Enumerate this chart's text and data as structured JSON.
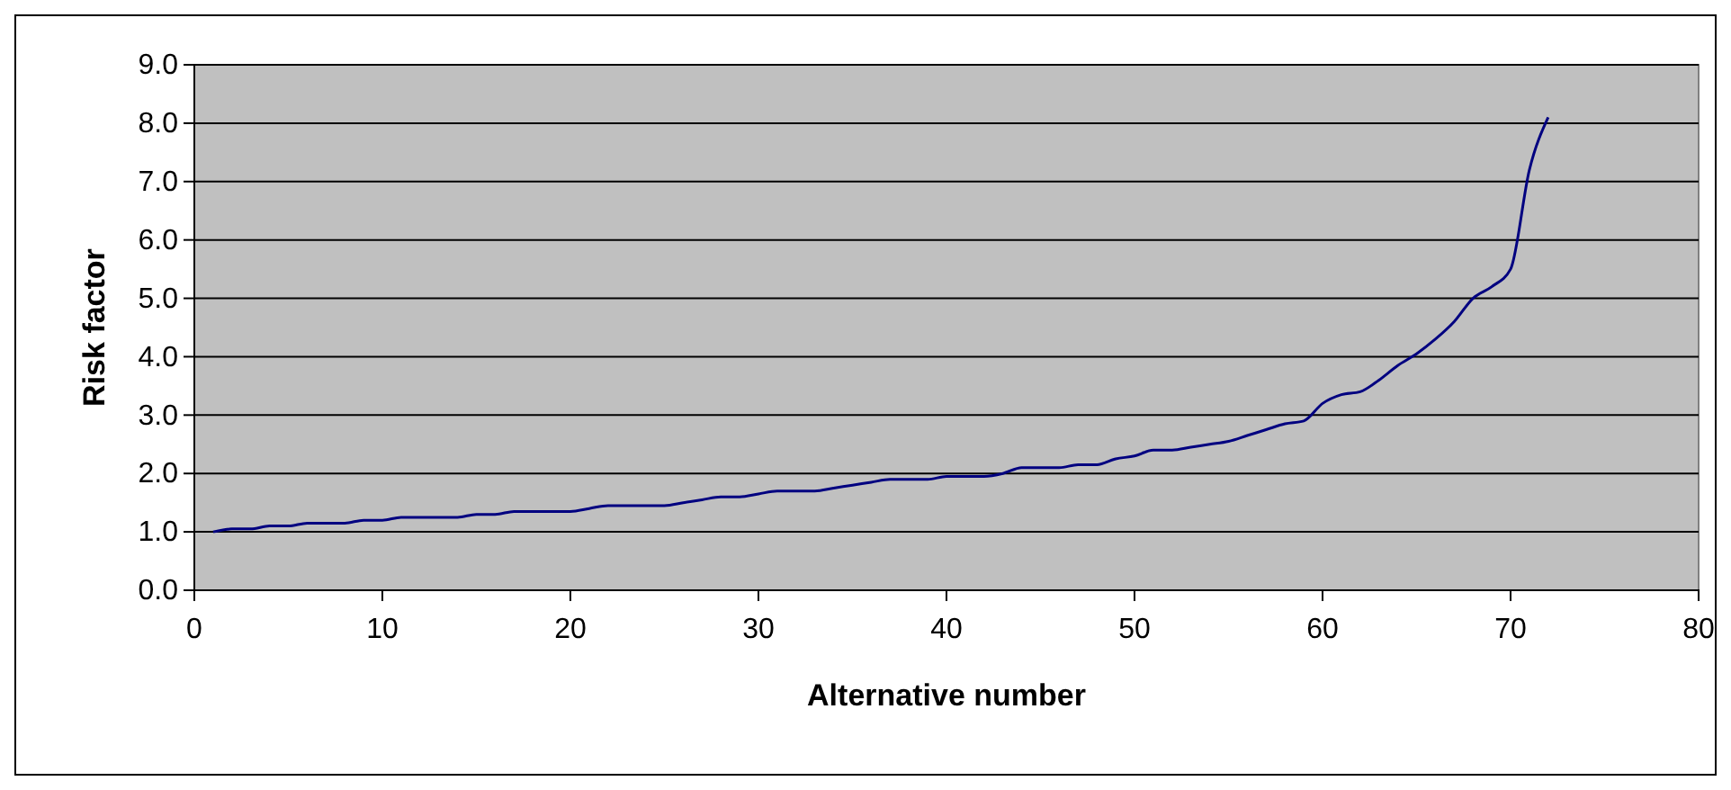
{
  "chart_data": {
    "type": "line",
    "xlabel": "Alternative number",
    "ylabel": "Risk factor",
    "x": [
      1,
      2,
      3,
      4,
      5,
      6,
      7,
      8,
      9,
      10,
      11,
      12,
      13,
      14,
      15,
      16,
      17,
      18,
      19,
      20,
      21,
      22,
      23,
      24,
      25,
      26,
      27,
      28,
      29,
      30,
      31,
      32,
      33,
      34,
      35,
      36,
      37,
      38,
      39,
      40,
      41,
      42,
      43,
      44,
      45,
      46,
      47,
      48,
      49,
      50,
      51,
      52,
      53,
      54,
      55,
      56,
      57,
      58,
      59,
      60,
      61,
      62,
      63,
      64,
      65,
      66,
      67,
      68,
      69,
      70,
      71,
      72
    ],
    "series": [
      {
        "color": "#000080",
        "values": [
          1.0,
          1.05,
          1.05,
          1.1,
          1.1,
          1.15,
          1.15,
          1.15,
          1.2,
          1.2,
          1.25,
          1.25,
          1.25,
          1.25,
          1.3,
          1.3,
          1.35,
          1.35,
          1.35,
          1.35,
          1.4,
          1.45,
          1.45,
          1.45,
          1.45,
          1.5,
          1.55,
          1.6,
          1.6,
          1.65,
          1.7,
          1.7,
          1.7,
          1.75,
          1.8,
          1.85,
          1.9,
          1.9,
          1.9,
          1.95,
          1.95,
          1.95,
          2.0,
          2.1,
          2.1,
          2.1,
          2.15,
          2.15,
          2.25,
          2.3,
          2.4,
          2.4,
          2.45,
          2.5,
          2.55,
          2.65,
          2.75,
          2.85,
          2.9,
          3.2,
          3.35,
          3.4,
          3.6,
          3.85,
          4.05,
          4.3,
          4.6,
          5.0,
          5.2,
          5.5,
          7.2,
          8.1
        ]
      }
    ],
    "xlim": [
      0,
      80
    ],
    "xticks": [
      0,
      10,
      20,
      30,
      40,
      50,
      60,
      70,
      80
    ],
    "ylim": [
      0,
      9
    ],
    "yticks": [
      {
        "value": 0,
        "label": "0.0"
      },
      {
        "value": 1,
        "label": "1.0"
      },
      {
        "value": 2,
        "label": "2.0"
      },
      {
        "value": 3,
        "label": "3.0"
      },
      {
        "value": 4,
        "label": "4.0"
      },
      {
        "value": 5,
        "label": "5.0"
      },
      {
        "value": 6,
        "label": "6.0"
      },
      {
        "value": 7,
        "label": "7.0"
      },
      {
        "value": 8,
        "label": "8.0"
      },
      {
        "value": 9,
        "label": "9.0"
      }
    ],
    "grid": "y",
    "marker": "none",
    "line_style": "solid"
  }
}
